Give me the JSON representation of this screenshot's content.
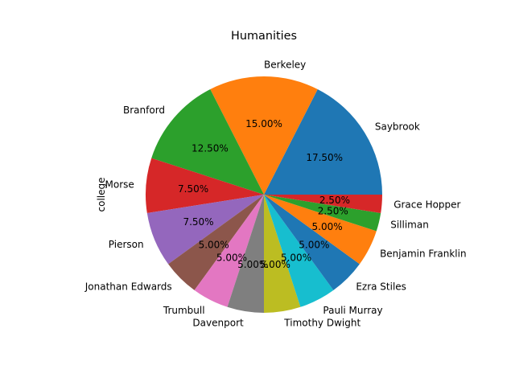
{
  "chart_data": {
    "type": "pie",
    "title": "Humanities",
    "ylabel": "college",
    "start_angle": 0,
    "direction": "counterclockwise",
    "slices": [
      {
        "label": "Saybrook",
        "value": 17.5,
        "pct_label": "17.50%",
        "color": "#1f77b4"
      },
      {
        "label": "Berkeley",
        "value": 15.0,
        "pct_label": "15.00%",
        "color": "#ff7f0e"
      },
      {
        "label": "Branford",
        "value": 12.5,
        "pct_label": "12.50%",
        "color": "#2ca02c"
      },
      {
        "label": "Morse",
        "value": 7.5,
        "pct_label": "7.50%",
        "color": "#d62728"
      },
      {
        "label": "Pierson",
        "value": 7.5,
        "pct_label": "7.50%",
        "color": "#9467bd"
      },
      {
        "label": "Jonathan Edwards",
        "value": 5.0,
        "pct_label": "5.00%",
        "color": "#8c564b"
      },
      {
        "label": "Trumbull",
        "value": 5.0,
        "pct_label": "5.00%",
        "color": "#e377c2"
      },
      {
        "label": "Davenport",
        "value": 5.0,
        "pct_label": "5.00%",
        "color": "#7f7f7f"
      },
      {
        "label": "Timothy Dwight",
        "value": 5.0,
        "pct_label": "5.00%",
        "color": "#bcbd22"
      },
      {
        "label": "Pauli Murray",
        "value": 5.0,
        "pct_label": "5.00%",
        "color": "#17becf"
      },
      {
        "label": "Ezra Stiles",
        "value": 5.0,
        "pct_label": "5.00%",
        "color": "#1f77b4"
      },
      {
        "label": "Benjamin Franklin",
        "value": 5.0,
        "pct_label": "5.00%",
        "color": "#ff7f0e"
      },
      {
        "label": "Silliman",
        "value": 2.5,
        "pct_label": "2.50%",
        "color": "#2ca02c"
      },
      {
        "label": "Grace Hopper",
        "value": 2.5,
        "pct_label": "2.50%",
        "color": "#d62728"
      }
    ]
  }
}
